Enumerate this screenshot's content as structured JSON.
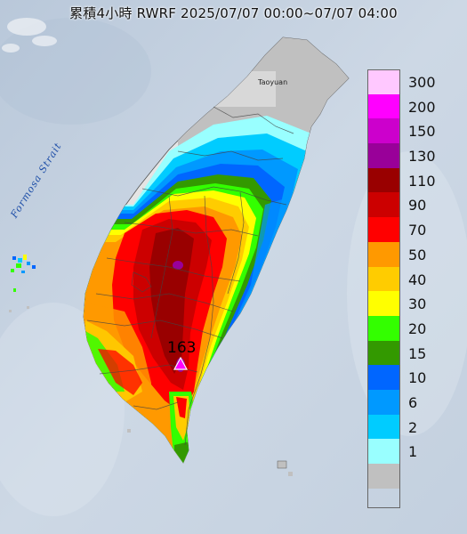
{
  "title": "累積4小時 RWRF 2025/07/07 00:00~07/07 04:00",
  "map": {
    "strait_label": "Formosa Strait",
    "city_label": "Taoyuan",
    "max_value_label": "163",
    "max_marker": "triangle-marker"
  },
  "legend": {
    "items": [
      {
        "label": "300",
        "color": "#ffc8ff"
      },
      {
        "label": "200",
        "color": "#ff00ff"
      },
      {
        "label": "150",
        "color": "#cc00cc"
      },
      {
        "label": "130",
        "color": "#990099"
      },
      {
        "label": "110",
        "color": "#990000"
      },
      {
        "label": "90",
        "color": "#cc0000"
      },
      {
        "label": "70",
        "color": "#ff0000"
      },
      {
        "label": "50",
        "color": "#ff9900"
      },
      {
        "label": "40",
        "color": "#ffcc00"
      },
      {
        "label": "30",
        "color": "#ffff00"
      },
      {
        "label": "20",
        "color": "#33ff00"
      },
      {
        "label": "15",
        "color": "#339900"
      },
      {
        "label": "10",
        "color": "#0066ff"
      },
      {
        "label": "6",
        "color": "#0099ff"
      },
      {
        "label": "2",
        "color": "#00ccff"
      },
      {
        "label": "1",
        "color": "#99ffff"
      },
      {
        "label": "",
        "color": "#c0c0c0"
      }
    ]
  }
}
